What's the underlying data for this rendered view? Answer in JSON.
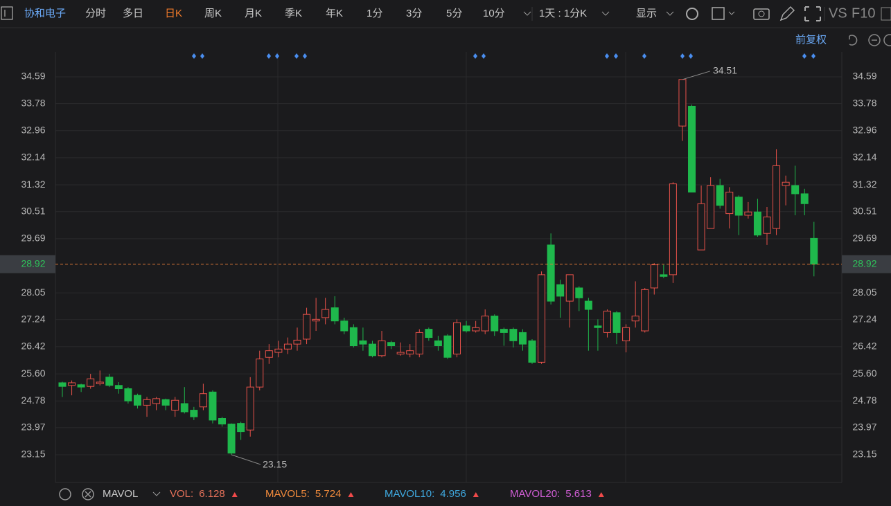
{
  "header": {
    "stock": "协和电子",
    "tabs": [
      "分时",
      "多日",
      "日K",
      "周K",
      "月K",
      "季K",
      "年K",
      "1分",
      "3分",
      "5分",
      "10分"
    ],
    "active_tab": 2,
    "period": "1天 : 1分K",
    "display": "显示",
    "vs": "VS",
    "f10": "F10",
    "adjust": "前复权"
  },
  "chart_data": {
    "type": "candlestick",
    "open": [
      25.33,
      25.25,
      25.27,
      25.22,
      25.3,
      25.5,
      25.25,
      25.15,
      24.95,
      24.65,
      24.7,
      24.82,
      24.5,
      24.7,
      24.5,
      24.6,
      25.05,
      24.25,
      24.08,
      24.1,
      23.9,
      25.2,
      26.1,
      26.25,
      26.35,
      26.5,
      26.65,
      27.2,
      27.3,
      27.6,
      27.2,
      27.0,
      26.6,
      26.5,
      26.15,
      26.55,
      26.2,
      26.2,
      26.2,
      26.95,
      26.6,
      26.75,
      26.2,
      27.05,
      26.9,
      26.9,
      27.35,
      26.95,
      26.95,
      26.85,
      26.6,
      25.95,
      29.5,
      28.3,
      27.8,
      28.2,
      27.8,
      27.05,
      26.85,
      27.45,
      26.6,
      27.2,
      26.9,
      28.2,
      28.6,
      28.6,
      33.1,
      33.7,
      29.35,
      30.0,
      31.3,
      30.45,
      30.95,
      30.4,
      30.5,
      29.85,
      30.0,
      31.3,
      31.3,
      31.05,
      29.7
    ],
    "high": [
      25.36,
      25.4,
      25.3,
      25.6,
      25.7,
      25.6,
      25.35,
      25.2,
      25.0,
      24.9,
      24.9,
      24.85,
      24.9,
      25.2,
      24.6,
      25.3,
      25.1,
      24.3,
      24.1,
      24.15,
      25.5,
      26.3,
      26.5,
      26.6,
      26.7,
      27.0,
      27.6,
      27.9,
      27.9,
      27.95,
      27.3,
      27.1,
      27.0,
      26.6,
      26.9,
      26.6,
      26.55,
      26.5,
      26.95,
      27.0,
      26.75,
      26.8,
      27.25,
      27.2,
      27.2,
      27.55,
      27.4,
      27.0,
      27.0,
      26.95,
      26.65,
      28.7,
      29.85,
      28.45,
      28.6,
      28.25,
      27.9,
      27.25,
      27.55,
      27.5,
      27.1,
      28.4,
      28.2,
      28.95,
      28.9,
      31.4,
      34.51,
      33.75,
      31.3,
      31.55,
      31.5,
      31.25,
      31.0,
      30.8,
      30.9,
      30.65,
      32.4,
      31.6,
      31.9,
      31.2,
      30.2
    ],
    "low": [
      24.9,
      24.95,
      25.05,
      25.15,
      25.25,
      25.2,
      25.0,
      24.7,
      24.55,
      24.3,
      24.5,
      24.5,
      24.3,
      24.4,
      24.2,
      24.5,
      24.1,
      24.0,
      23.15,
      23.6,
      23.7,
      25.1,
      25.9,
      26.1,
      26.2,
      26.3,
      26.5,
      26.9,
      27.1,
      27.1,
      26.8,
      26.4,
      26.3,
      26.1,
      26.1,
      26.35,
      26.15,
      26.1,
      26.1,
      26.6,
      26.3,
      26.05,
      26.1,
      26.85,
      26.85,
      26.8,
      26.75,
      26.45,
      26.4,
      26.3,
      25.9,
      25.9,
      27.7,
      27.3,
      27.0,
      27.5,
      26.3,
      26.3,
      26.7,
      26.5,
      26.25,
      27.0,
      26.85,
      28.0,
      28.5,
      28.35,
      32.65,
      31.1,
      29.35,
      30.0,
      30.6,
      30.0,
      29.8,
      30.3,
      29.75,
      29.5,
      29.8,
      30.7,
      30.4,
      30.4,
      28.55
    ],
    "close": [
      25.22,
      25.33,
      25.2,
      25.45,
      25.35,
      25.25,
      25.15,
      24.78,
      24.65,
      24.82,
      24.85,
      24.65,
      24.8,
      24.45,
      24.3,
      25.0,
      24.2,
      24.08,
      23.2,
      23.85,
      25.2,
      26.05,
      26.3,
      26.35,
      26.5,
      26.62,
      27.4,
      27.25,
      27.55,
      27.2,
      26.9,
      26.45,
      26.5,
      26.15,
      26.6,
      26.45,
      26.25,
      26.3,
      26.85,
      26.7,
      26.45,
      26.1,
      27.15,
      26.9,
      27.0,
      27.35,
      26.9,
      26.85,
      26.6,
      26.5,
      25.95,
      28.6,
      27.8,
      27.95,
      28.6,
      27.9,
      27.55,
      27.0,
      27.5,
      26.85,
      27.0,
      27.35,
      28.15,
      28.9,
      28.55,
      31.35,
      34.51,
      31.1,
      30.75,
      31.3,
      30.7,
      31.1,
      30.4,
      30.5,
      29.8,
      30.35,
      31.9,
      31.4,
      31.05,
      30.75,
      28.92
    ],
    "up_color": "#e8524a",
    "down_color": "#1fb84c",
    "ylim": [
      22.354,
      35.344
    ],
    "yticks": [
      34.59,
      33.78,
      32.96,
      32.14,
      31.32,
      30.51,
      29.69,
      28.05,
      27.24,
      26.42,
      {
        "value": 25.6,
        "label": "25.60"
      },
      24.78,
      23.97,
      23.15
    ],
    "grid": true,
    "last_price": 28.92,
    "max_label": 34.51,
    "min_label": 23.15,
    "indicator": "MAVOL",
    "indicators": [
      {
        "name": "VOL:",
        "value": 6.128,
        "color": "#e8725a"
      },
      {
        "name": "MAVOL5:",
        "value": 5.724,
        "color": "#f08a3c"
      },
      {
        "name": "MAVOL10:",
        "value": 4.956,
        "color": "#3fa9e0"
      },
      {
        "name": "MAVOL20:",
        "value": 5.613,
        "color": "#d25ed6"
      }
    ]
  }
}
